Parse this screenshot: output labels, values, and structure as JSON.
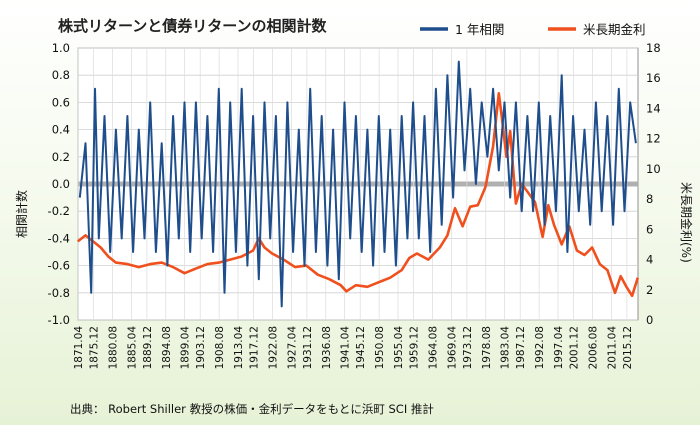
{
  "chart_data": {
    "type": "line",
    "title": "株式リターンと債券リターンの相関計数",
    "ylabel_left": "相関計数",
    "ylabel_right": "米長期金利(%)",
    "ylim_left": [
      -1.0,
      1.0
    ],
    "ylim_right": [
      0,
      18
    ],
    "yticks_left": [
      "1.0",
      "0.8",
      "0.6",
      "0.4",
      "0.2",
      "0.0",
      "-0.2",
      "-0.4",
      "-0.6",
      "-0.8",
      "-1.0"
    ],
    "yticks_right": [
      "18",
      "16",
      "14",
      "12",
      "10",
      "8",
      "6",
      "4",
      "2",
      "0"
    ],
    "x_start": "1871.04",
    "x_end": "2018.04",
    "x_ticks": [
      "1871.04",
      "1875.12",
      "1880.08",
      "1885.04",
      "1889.12",
      "1894.08",
      "1899.04",
      "1903.12",
      "1908.08",
      "1913.04",
      "1917.12",
      "1922.08",
      "1927.04",
      "1931.12",
      "1936.08",
      "1941.04",
      "1945.12",
      "1950.08",
      "1955.04",
      "1959.12",
      "1964.08",
      "1969.04",
      "1973.12",
      "1978.08",
      "1983.04",
      "1987.12",
      "1992.08",
      "1997.04",
      "2001.12",
      "2006.08",
      "2011.04",
      "2015.12"
    ],
    "grid": true,
    "legend_position": "top-right",
    "series": [
      {
        "name": "1 年相関",
        "color": "#1f4e8c",
        "axis": "left",
        "points": [
          [
            1871.5,
            -0.1
          ],
          [
            1873.0,
            0.3
          ],
          [
            1874.5,
            -0.8
          ],
          [
            1875.5,
            0.7
          ],
          [
            1876.5,
            -0.4
          ],
          [
            1878.0,
            0.5
          ],
          [
            1879.5,
            -0.5
          ],
          [
            1881.0,
            0.4
          ],
          [
            1882.5,
            -0.4
          ],
          [
            1884.0,
            0.5
          ],
          [
            1885.5,
            -0.5
          ],
          [
            1887.0,
            0.4
          ],
          [
            1888.5,
            -0.4
          ],
          [
            1890.0,
            0.6
          ],
          [
            1891.5,
            -0.5
          ],
          [
            1893.0,
            0.3
          ],
          [
            1894.5,
            -0.6
          ],
          [
            1896.0,
            0.5
          ],
          [
            1897.5,
            -0.4
          ],
          [
            1899.0,
            0.6
          ],
          [
            1900.5,
            -0.5
          ],
          [
            1902.0,
            0.6
          ],
          [
            1903.5,
            -0.4
          ],
          [
            1905.0,
            0.5
          ],
          [
            1906.5,
            -0.5
          ],
          [
            1908.0,
            0.7
          ],
          [
            1909.5,
            -0.8
          ],
          [
            1911.0,
            0.6
          ],
          [
            1912.5,
            -0.5
          ],
          [
            1914.0,
            0.7
          ],
          [
            1915.5,
            -0.6
          ],
          [
            1917.0,
            0.5
          ],
          [
            1918.5,
            -0.7
          ],
          [
            1920.0,
            0.6
          ],
          [
            1921.5,
            -0.4
          ],
          [
            1923.0,
            0.5
          ],
          [
            1924.5,
            -0.9
          ],
          [
            1926.0,
            0.6
          ],
          [
            1927.5,
            -0.5
          ],
          [
            1929.0,
            0.4
          ],
          [
            1930.5,
            -0.6
          ],
          [
            1932.0,
            0.7
          ],
          [
            1933.5,
            -0.5
          ],
          [
            1935.0,
            0.5
          ],
          [
            1936.5,
            -0.6
          ],
          [
            1938.0,
            0.4
          ],
          [
            1939.5,
            -0.7
          ],
          [
            1941.0,
            0.6
          ],
          [
            1942.5,
            -0.4
          ],
          [
            1944.0,
            0.5
          ],
          [
            1945.5,
            -0.5
          ],
          [
            1947.0,
            0.4
          ],
          [
            1948.5,
            -0.6
          ],
          [
            1950.0,
            0.5
          ],
          [
            1951.5,
            -0.5
          ],
          [
            1953.0,
            0.4
          ],
          [
            1954.5,
            -0.6
          ],
          [
            1956.0,
            0.5
          ],
          [
            1957.5,
            -0.4
          ],
          [
            1959.0,
            0.6
          ],
          [
            1960.5,
            -0.4
          ],
          [
            1962.0,
            0.5
          ],
          [
            1963.5,
            -0.5
          ],
          [
            1965.0,
            0.7
          ],
          [
            1966.5,
            -0.3
          ],
          [
            1968.0,
            0.8
          ],
          [
            1969.5,
            -0.1
          ],
          [
            1971.0,
            0.9
          ],
          [
            1972.5,
            0.1
          ],
          [
            1974.0,
            0.7
          ],
          [
            1975.5,
            0.0
          ],
          [
            1977.0,
            0.6
          ],
          [
            1978.5,
            0.2
          ],
          [
            1980.0,
            0.7
          ],
          [
            1981.5,
            0.1
          ],
          [
            1983.0,
            0.6
          ],
          [
            1984.5,
            -0.1
          ],
          [
            1986.0,
            0.6
          ],
          [
            1987.5,
            -0.2
          ],
          [
            1989.0,
            0.5
          ],
          [
            1990.5,
            -0.2
          ],
          [
            1992.0,
            0.6
          ],
          [
            1993.5,
            -0.3
          ],
          [
            1995.0,
            0.5
          ],
          [
            1996.5,
            -0.2
          ],
          [
            1998.0,
            0.8
          ],
          [
            1999.5,
            -0.5
          ],
          [
            2001.0,
            0.5
          ],
          [
            2002.5,
            -0.2
          ],
          [
            2004.0,
            0.4
          ],
          [
            2005.5,
            -0.3
          ],
          [
            2007.0,
            0.6
          ],
          [
            2008.5,
            -0.2
          ],
          [
            2010.0,
            0.5
          ],
          [
            2011.5,
            -0.3
          ],
          [
            2013.0,
            0.7
          ],
          [
            2014.5,
            -0.2
          ],
          [
            2016.0,
            0.6
          ],
          [
            2017.5,
            0.3
          ]
        ]
      },
      {
        "name": "米長期金利",
        "color": "#f0501e",
        "axis": "right",
        "points": [
          [
            1871.0,
            5.2
          ],
          [
            1873.0,
            5.6
          ],
          [
            1875.0,
            5.2
          ],
          [
            1877.0,
            4.8
          ],
          [
            1879.0,
            4.2
          ],
          [
            1881.0,
            3.8
          ],
          [
            1884.0,
            3.7
          ],
          [
            1887.0,
            3.5
          ],
          [
            1890.0,
            3.7
          ],
          [
            1893.0,
            3.8
          ],
          [
            1896.0,
            3.5
          ],
          [
            1899.0,
            3.1
          ],
          [
            1902.0,
            3.4
          ],
          [
            1905.0,
            3.7
          ],
          [
            1908.0,
            3.8
          ],
          [
            1911.0,
            4.0
          ],
          [
            1914.0,
            4.2
          ],
          [
            1917.0,
            4.6
          ],
          [
            1918.5,
            5.4
          ],
          [
            1920.0,
            4.8
          ],
          [
            1922.0,
            4.4
          ],
          [
            1925.0,
            4.0
          ],
          [
            1928.0,
            3.5
          ],
          [
            1931.0,
            3.6
          ],
          [
            1934.0,
            3.0
          ],
          [
            1937.0,
            2.7
          ],
          [
            1940.0,
            2.3
          ],
          [
            1941.5,
            1.9
          ],
          [
            1944.0,
            2.3
          ],
          [
            1947.0,
            2.2
          ],
          [
            1950.0,
            2.5
          ],
          [
            1953.0,
            2.8
          ],
          [
            1956.0,
            3.3
          ],
          [
            1958.0,
            4.1
          ],
          [
            1960.0,
            4.4
          ],
          [
            1963.0,
            4.0
          ],
          [
            1966.0,
            4.8
          ],
          [
            1968.0,
            5.6
          ],
          [
            1970.0,
            7.4
          ],
          [
            1972.0,
            6.2
          ],
          [
            1974.0,
            7.5
          ],
          [
            1976.0,
            7.6
          ],
          [
            1978.0,
            8.8
          ],
          [
            1980.0,
            11.5
          ],
          [
            1981.5,
            15.0
          ],
          [
            1982.5,
            13.0
          ],
          [
            1983.5,
            10.8
          ],
          [
            1984.5,
            12.5
          ],
          [
            1986.0,
            7.7
          ],
          [
            1987.5,
            9.0
          ],
          [
            1989.0,
            8.5
          ],
          [
            1991.0,
            7.8
          ],
          [
            1993.0,
            5.5
          ],
          [
            1994.5,
            7.6
          ],
          [
            1996.0,
            6.3
          ],
          [
            1998.0,
            5.0
          ],
          [
            2000.0,
            6.2
          ],
          [
            2002.0,
            4.6
          ],
          [
            2004.0,
            4.3
          ],
          [
            2006.0,
            4.8
          ],
          [
            2008.0,
            3.7
          ],
          [
            2010.0,
            3.3
          ],
          [
            2012.0,
            1.8
          ],
          [
            2013.5,
            2.9
          ],
          [
            2015.0,
            2.2
          ],
          [
            2016.5,
            1.6
          ],
          [
            2018.0,
            2.8
          ]
        ]
      }
    ],
    "footer": "出典： Robert Shiller 教授の株価・金利データをもとに浜町 SCI 推計"
  }
}
